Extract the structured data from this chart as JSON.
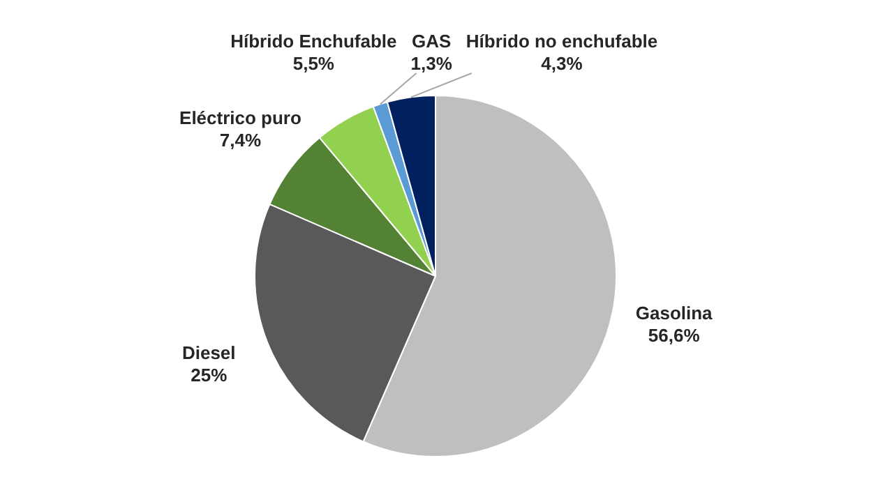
{
  "chart_data": {
    "type": "pie",
    "categories": [
      "Gasolina",
      "Diesel",
      "Eléctrico puro",
      "Híbrido Enchufable",
      "GAS",
      "Híbrido no enchufable"
    ],
    "values": [
      56.6,
      25,
      7.4,
      5.5,
      1.3,
      4.3
    ],
    "colors": [
      "#bfbfbf",
      "#595959",
      "#548235",
      "#92d050",
      "#5b9bd5",
      "#002060"
    ],
    "value_labels": [
      "56,6%",
      "25%",
      "7,4%",
      "5,5%",
      "1,3%",
      "4,3%"
    ],
    "legend": false
  }
}
